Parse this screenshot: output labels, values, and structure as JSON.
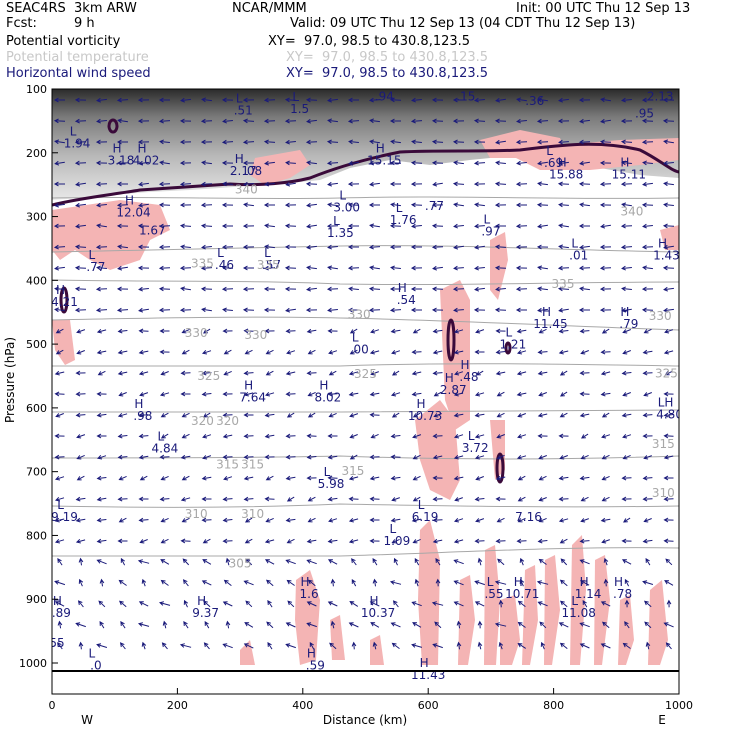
{
  "header": {
    "model": "SEAC4RS  3km ARW",
    "center": "NCAR/MMM",
    "init": "Init: 00 UTC Thu 12 Sep 13",
    "fcst_label": "Fcst:",
    "fcst_value": "9 h",
    "valid": "Valid: 09 UTC Thu 12 Sep 13 (04 CDT Thu 12 Sep 13)",
    "fields": [
      {
        "name": "Potential vorticity",
        "xy": "XY=  97.0, 98.5 to 430.8,123.5"
      },
      {
        "name": "Potential temperature",
        "xy": "XY=  97.0, 98.5 to 430.8,123.5"
      },
      {
        "name": "Horizontal wind speed",
        "xy": "XY=  97.0, 98.5 to 430.8,123.5"
      }
    ]
  },
  "colors": {
    "pv": "#3a0a3a",
    "theta": "#a8a8a8",
    "wind": "#1a1a7a",
    "pink": "#f4b4b4"
  },
  "chart_data": {
    "type": "cross-section",
    "xlabel": "Distance (km)",
    "ylabel": "Pressure (hPa)",
    "xlim": [
      0,
      1000
    ],
    "ylim": [
      1050,
      100
    ],
    "x_ticks": [
      "0",
      "200",
      "400",
      "600",
      "800",
      "1000"
    ],
    "x_tick_values": [
      0,
      200,
      400,
      600,
      800,
      1000
    ],
    "y_ticks": [
      "100",
      "200",
      "300",
      "400",
      "500",
      "600",
      "700",
      "800",
      "900",
      "1000"
    ],
    "y_tick_values": [
      100,
      200,
      300,
      400,
      500,
      600,
      700,
      800,
      900,
      1000
    ],
    "end_labels": {
      "west": "W",
      "east": "E"
    },
    "theta_labels": [
      {
        "text": "340",
        "x": 310,
        "p": 264
      },
      {
        "text": "340",
        "x": 925,
        "p": 298
      },
      {
        "text": "335",
        "x": 240,
        "p": 380
      },
      {
        "text": "335",
        "x": 345,
        "p": 382
      },
      {
        "text": "335",
        "x": 815,
        "p": 412
      },
      {
        "text": "330",
        "x": 230,
        "p": 489
      },
      {
        "text": "330",
        "x": 325,
        "p": 492
      },
      {
        "text": "330",
        "x": 490,
        "p": 460
      },
      {
        "text": "330",
        "x": 970,
        "p": 462
      },
      {
        "text": "325",
        "x": 250,
        "p": 556
      },
      {
        "text": "325",
        "x": 500,
        "p": 553
      },
      {
        "text": "325",
        "x": 980,
        "p": 552
      },
      {
        "text": "320",
        "x": 240,
        "p": 627
      },
      {
        "text": "320",
        "x": 280,
        "p": 627
      },
      {
        "text": "315",
        "x": 280,
        "p": 695
      },
      {
        "text": "315",
        "x": 320,
        "p": 695
      },
      {
        "text": "315",
        "x": 480,
        "p": 705
      },
      {
        "text": "315",
        "x": 975,
        "p": 663
      },
      {
        "text": "310",
        "x": 230,
        "p": 773
      },
      {
        "text": "310",
        "x": 320,
        "p": 773
      },
      {
        "text": "310",
        "x": 975,
        "p": 740
      },
      {
        "text": "305",
        "x": 300,
        "p": 850
      }
    ],
    "extrema": [
      {
        "type": "L",
        "value": "1.94",
        "x": 40,
        "p": 192
      },
      {
        "type": "H",
        "value": "3.18",
        "x": 110,
        "p": 218
      },
      {
        "type": "H",
        "value": "4.02",
        "x": 150,
        "p": 218
      },
      {
        "type": "L",
        "value": ".51",
        "x": 305,
        "p": 140
      },
      {
        "type": "L",
        "value": "1.5",
        "x": 395,
        "p": 138
      },
      {
        "type": "",
        "value": ".94",
        "x": 530,
        "p": 118
      },
      {
        "type": "",
        "value": ".15",
        "x": 660,
        "p": 118
      },
      {
        "type": "",
        "value": ".36",
        "x": 770,
        "p": 125
      },
      {
        "type": "L",
        "value": "2.13",
        "x": 970,
        "p": 118
      },
      {
        "type": "",
        "value": ".95",
        "x": 945,
        "p": 145
      },
      {
        "type": "H",
        "value": "2.17",
        "x": 305,
        "p": 235
      },
      {
        "type": "",
        "value": ".08",
        "x": 320,
        "p": 235
      },
      {
        "type": "H",
        "value": "15.15",
        "x": 530,
        "p": 218
      },
      {
        "type": "L",
        "value": ".69",
        "x": 800,
        "p": 222
      },
      {
        "type": "H",
        "value": "15.88",
        "x": 820,
        "p": 240
      },
      {
        "type": "H",
        "value": "15.11",
        "x": 920,
        "p": 240
      },
      {
        "type": "H",
        "value": "12.04",
        "x": 130,
        "p": 300
      },
      {
        "type": "",
        "value": "1.67",
        "x": 160,
        "p": 328
      },
      {
        "type": "L",
        "value": "3.00",
        "x": 470,
        "p": 292
      },
      {
        "type": "L",
        "value": "1.76",
        "x": 560,
        "p": 312
      },
      {
        "type": "",
        "value": ".77",
        "x": 610,
        "p": 290
      },
      {
        "type": "L",
        "value": "1.35",
        "x": 460,
        "p": 332
      },
      {
        "type": "L",
        "value": ".97",
        "x": 700,
        "p": 330
      },
      {
        "type": "L",
        "value": ".01",
        "x": 840,
        "p": 367
      },
      {
        "type": "H",
        "value": "1.43",
        "x": 980,
        "p": 367
      },
      {
        "type": "L",
        "value": ".77",
        "x": 70,
        "p": 385
      },
      {
        "type": "L",
        "value": ".46",
        "x": 275,
        "p": 382
      },
      {
        "type": "L",
        "value": ".57",
        "x": 350,
        "p": 382
      },
      {
        "type": "H",
        "value": ".54",
        "x": 565,
        "p": 437
      },
      {
        "type": "H",
        "value": "4.21",
        "x": 20,
        "p": 440
      },
      {
        "type": "H",
        "value": "11.45",
        "x": 795,
        "p": 475
      },
      {
        "type": "H",
        "value": ".79",
        "x": 920,
        "p": 475
      },
      {
        "type": "L",
        "value": ".00",
        "x": 490,
        "p": 515
      },
      {
        "type": "L",
        "value": "1.21",
        "x": 735,
        "p": 507
      },
      {
        "type": "H",
        "value": ".48",
        "x": 665,
        "p": 558
      },
      {
        "type": "H",
        "value": "2.87",
        "x": 640,
        "p": 578
      },
      {
        "type": "H",
        "value": "7.64",
        "x": 320,
        "p": 590
      },
      {
        "type": "H",
        "value": "8.02",
        "x": 440,
        "p": 590
      },
      {
        "type": "LH",
        "value": "4.80",
        "x": 985,
        "p": 617
      },
      {
        "type": "H",
        "value": ".98",
        "x": 145,
        "p": 619
      },
      {
        "type": "H",
        "value": "10.73",
        "x": 595,
        "p": 619
      },
      {
        "type": "L",
        "value": "4.84",
        "x": 180,
        "p": 670
      },
      {
        "type": "L",
        "value": "3.72",
        "x": 675,
        "p": 669
      },
      {
        "type": "L",
        "value": "5.98",
        "x": 445,
        "p": 726
      },
      {
        "type": "L",
        "value": "9.19",
        "x": 20,
        "p": 777
      },
      {
        "type": "L",
        "value": "6.19",
        "x": 595,
        "p": 777
      },
      {
        "type": "",
        "value": "7.16",
        "x": 760,
        "p": 777
      },
      {
        "type": "L",
        "value": "1.09",
        "x": 550,
        "p": 815
      },
      {
        "type": "H",
        "value": "1.6",
        "x": 410,
        "p": 898
      },
      {
        "type": "L",
        "value": ".55",
        "x": 705,
        "p": 898
      },
      {
        "type": "H",
        "value": "10.71",
        "x": 750,
        "p": 898
      },
      {
        "type": "H",
        "value": "1.14",
        "x": 855,
        "p": 898
      },
      {
        "type": "H",
        "value": ".78",
        "x": 910,
        "p": 898
      },
      {
        "type": "H",
        "value": "9.37",
        "x": 245,
        "p": 928
      },
      {
        "type": "H",
        "value": "10.37",
        "x": 520,
        "p": 928
      },
      {
        "type": "L",
        "value": "11.08",
        "x": 840,
        "p": 928
      },
      {
        "type": "H",
        "value": ".89",
        "x": 15,
        "p": 928
      },
      {
        "type": "",
        "value": ".55",
        "x": 5,
        "p": 975
      },
      {
        "type": "L",
        "value": ".0",
        "x": 70,
        "p": 1010
      },
      {
        "type": "H",
        "value": ".59",
        "x": 420,
        "p": 1010
      },
      {
        "type": "H",
        "value": "11.43",
        "x": 600,
        "p": 1025
      }
    ]
  }
}
